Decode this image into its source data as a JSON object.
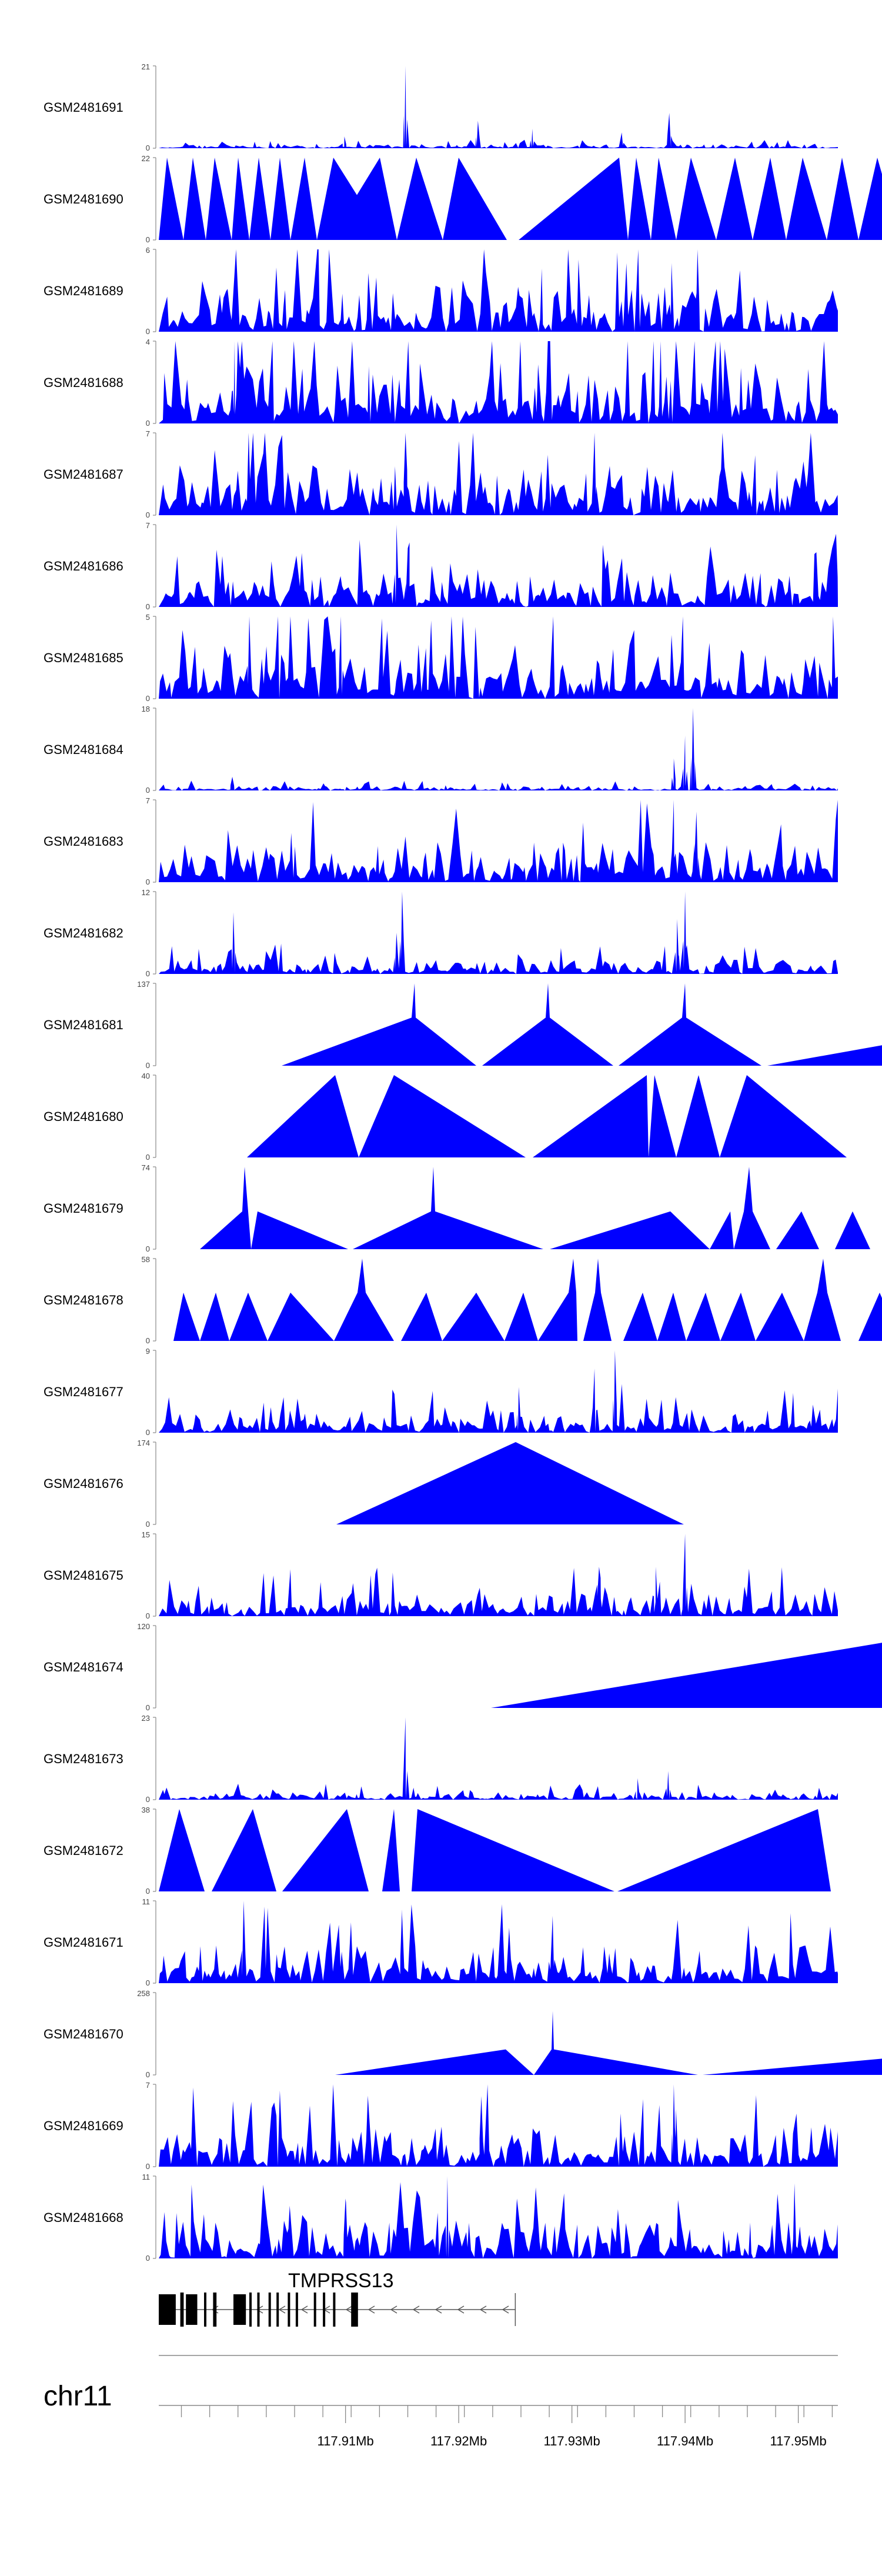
{
  "chart_data": {
    "type": "area",
    "title": "",
    "chromosome": "chr11",
    "genomic_range_mb": [
      117.8935,
      117.9535
    ],
    "x_ticks_mb": [
      117.91,
      117.92,
      117.93,
      117.94,
      117.95
    ],
    "x_tick_labels": [
      "117.91Mb",
      "117.92Mb",
      "117.93Mb",
      "117.94Mb",
      "117.95Mb"
    ],
    "series_color": "#0000FF",
    "gene": {
      "name": "TMPRSS13",
      "start_mb": 117.8935,
      "end_mb": 117.925,
      "strand": "-",
      "exons_mb": [
        [
          117.8935,
          117.895
        ],
        [
          117.8954,
          117.8957
        ],
        [
          117.8959,
          117.8969
        ],
        [
          117.8975,
          117.8977
        ],
        [
          117.8983,
          117.8986
        ],
        [
          117.9001,
          117.9012
        ],
        [
          117.9015,
          117.9017
        ],
        [
          117.9022,
          117.9024
        ],
        [
          117.9032,
          117.9034
        ],
        [
          117.9039,
          117.9041
        ],
        [
          117.9049,
          117.9051
        ],
        [
          117.9056,
          117.9058
        ],
        [
          117.9072,
          117.9074
        ],
        [
          117.908,
          117.9082
        ],
        [
          117.9089,
          117.9091
        ],
        [
          117.9105,
          117.9111
        ]
      ]
    },
    "series": [
      {
        "name": "GSM2481691",
        "ymax": 21,
        "peaks": [
          [
            117.9153,
            21
          ],
          [
            117.9217,
            7
          ],
          [
            117.9265,
            5
          ],
          [
            117.9386,
            9
          ],
          [
            117.9344,
            4
          ],
          [
            117.9099,
            3
          ]
        ],
        "noise": 1.2
      },
      {
        "name": "GSM2481690",
        "ymax": 22,
        "peaks": [],
        "noise": 0
      },
      {
        "name": "GSM2481689",
        "ymax": 6,
        "peaks": [
          [
            117.9411,
            6
          ],
          [
            117.9388,
            5
          ]
        ],
        "noise": 4
      },
      {
        "name": "GSM2481688",
        "ymax": 4,
        "peaks": [
          [
            117.9002,
            4
          ]
        ],
        "noise": 3.5
      },
      {
        "name": "GSM2481687",
        "ymax": 7,
        "peaks": [
          [
            117.932,
            7
          ],
          [
            117.9153,
            7
          ]
        ],
        "noise": 5
      },
      {
        "name": "GSM2481686",
        "ymax": 7,
        "peaks": [
          [
            117.9145,
            7
          ],
          [
            117.9155,
            5
          ]
        ],
        "noise": 3.5
      },
      {
        "name": "GSM2481685",
        "ymax": 5,
        "peaks": [
          [
            117.9096,
            5
          ],
          [
            117.9015,
            5
          ]
        ],
        "noise": 4
      },
      {
        "name": "GSM2481684",
        "ymax": 18,
        "peaks": [
          [
            117.9407,
            18
          ],
          [
            117.94,
            12
          ],
          [
            117.939,
            7
          ],
          [
            117.9,
            3
          ]
        ],
        "noise": 1.2
      },
      {
        "name": "GSM2481683",
        "ymax": 7,
        "peaks": [
          [
            117.939,
            7
          ],
          [
            117.941,
            6
          ]
        ],
        "noise": 4
      },
      {
        "name": "GSM2481682",
        "ymax": 12,
        "peaks": [
          [
            117.94,
            12
          ],
          [
            117.915,
            12
          ],
          [
            117.9001,
            9
          ],
          [
            117.9145,
            6
          ],
          [
            117.9393,
            8
          ]
        ],
        "noise": 2.5
      },
      {
        "name": "GSM2481681",
        "ymax": 137,
        "peaks": [],
        "noise": 0
      },
      {
        "name": "GSM2481680",
        "ymax": 40,
        "peaks": [],
        "noise": 0
      },
      {
        "name": "GSM2481679",
        "ymax": 74,
        "peaks": [],
        "noise": 0
      },
      {
        "name": "GSM2481678",
        "ymax": 58,
        "peaks": [],
        "noise": 0
      },
      {
        "name": "GSM2481677",
        "ymax": 9,
        "peaks": [
          [
            117.9338,
            9
          ],
          [
            117.932,
            7
          ],
          [
            117.9253,
            5
          ]
        ],
        "noise": 3
      },
      {
        "name": "GSM2481676",
        "ymax": 174,
        "peaks": [],
        "noise": 0
      },
      {
        "name": "GSM2481675",
        "ymax": 15,
        "peaks": [
          [
            117.94,
            15
          ],
          [
            117.9324,
            9
          ],
          [
            117.9374,
            9
          ]
        ],
        "noise": 5
      },
      {
        "name": "GSM2481674",
        "ymax": 120,
        "peaks": [],
        "noise": 0
      },
      {
        "name": "GSM2481673",
        "ymax": 23,
        "peaks": [
          [
            117.9153,
            23
          ],
          [
            117.9385,
            8
          ],
          [
            117.9358,
            6
          ]
        ],
        "noise": 2.5
      },
      {
        "name": "GSM2481672",
        "ymax": 38,
        "peaks": [],
        "noise": 0
      },
      {
        "name": "GSM2481671",
        "ymax": 11,
        "peaks": [
          [
            117.901,
            11
          ],
          [
            117.915,
            9
          ],
          [
            117.9283,
            9
          ]
        ],
        "noise": 6
      },
      {
        "name": "GSM2481670",
        "ymax": 258,
        "peaks": [],
        "noise": 0
      },
      {
        "name": "GSM2481669",
        "ymax": 7,
        "peaks": [
          [
            117.939,
            7
          ],
          [
            117.922,
            6
          ]
        ],
        "noise": 4
      },
      {
        "name": "GSM2481668",
        "ymax": 11,
        "peaks": [
          [
            117.919,
            11
          ],
          [
            117.91,
            8
          ]
        ],
        "noise": 6
      }
    ]
  }
}
